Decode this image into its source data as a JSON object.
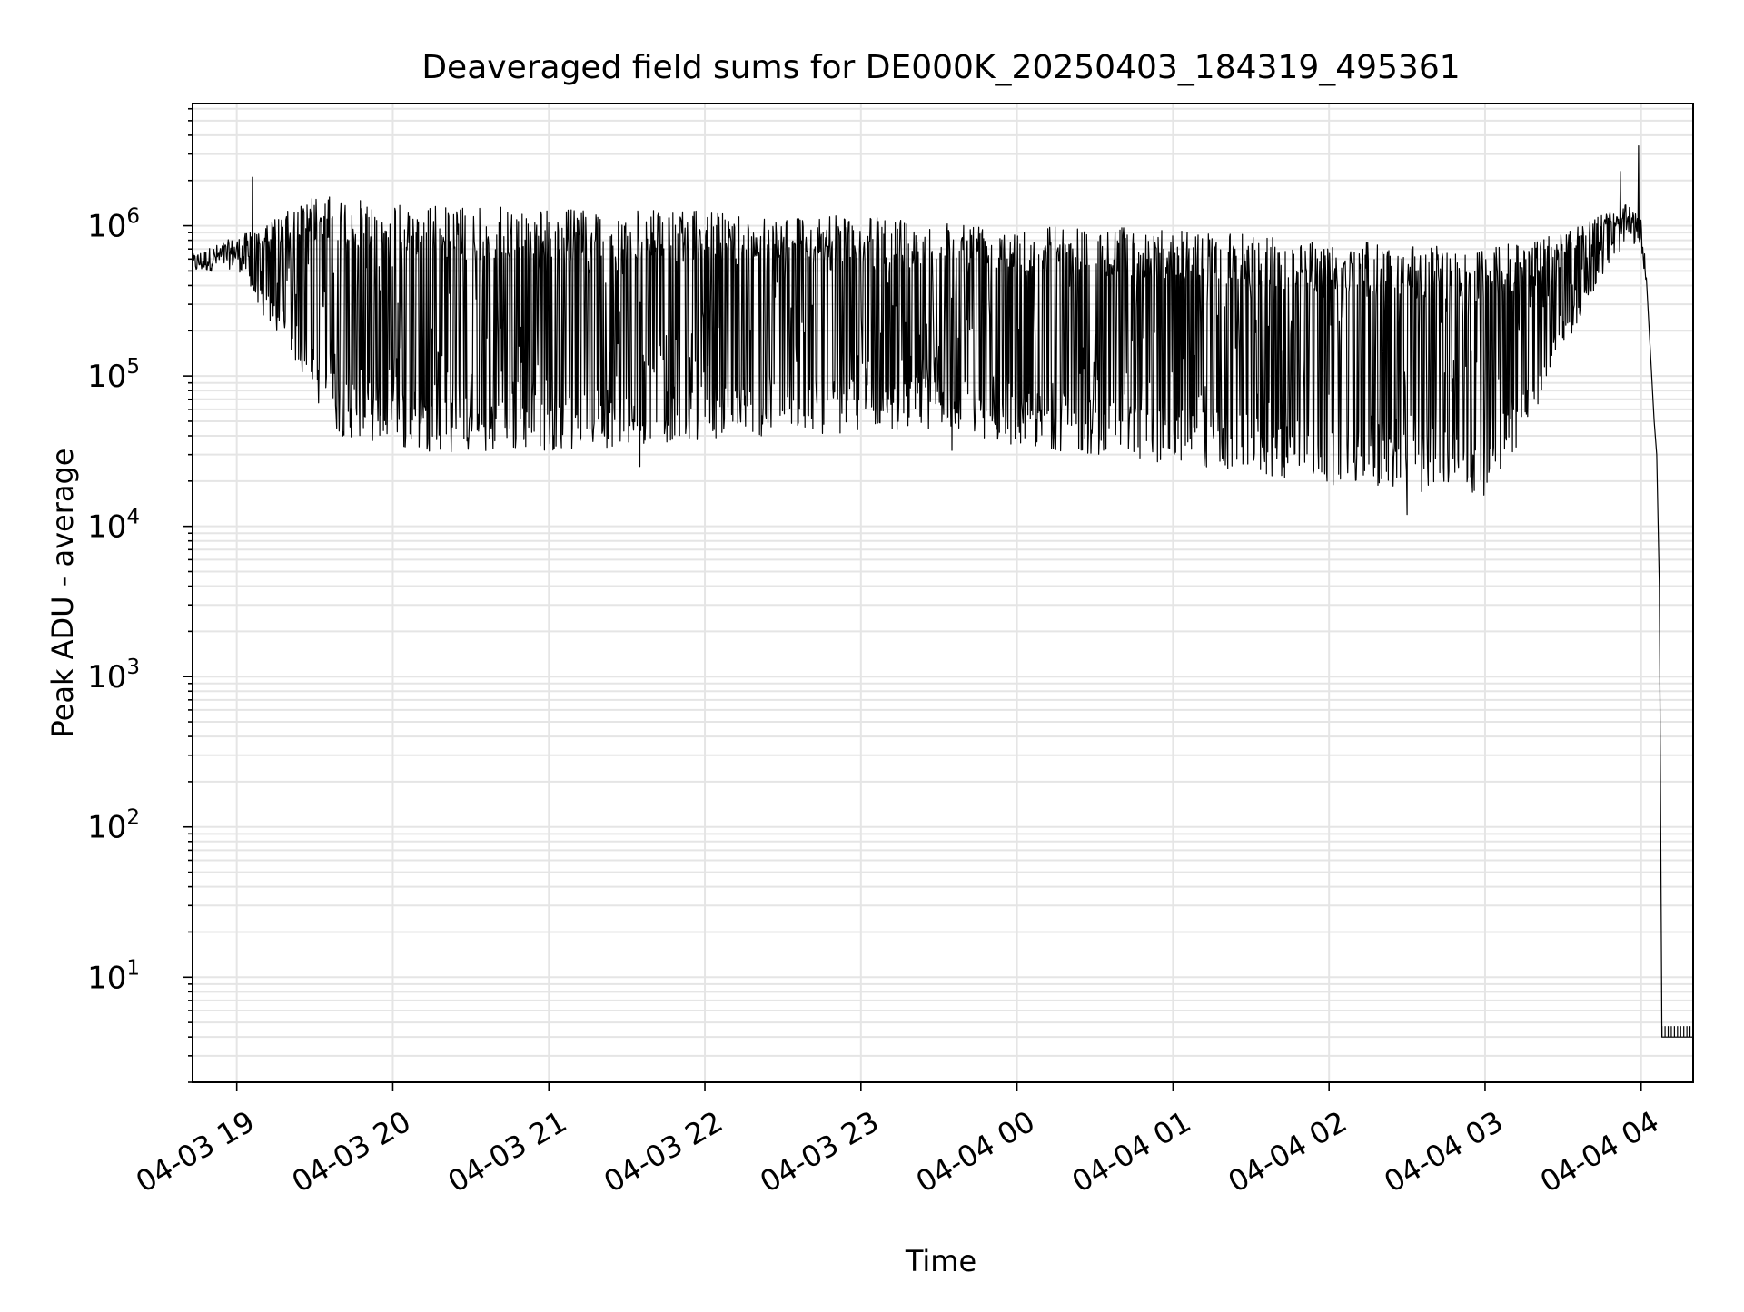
{
  "chart_data": {
    "type": "line",
    "title": "Deaveraged field sums for DE000K_20250403_184319_495361",
    "xlabel": "Time",
    "ylabel": "Peak ADU - average",
    "xscale": "time",
    "yscale": "log",
    "xlim": [
      "2025-04-03 18:43",
      "2025-04-04 04:20"
    ],
    "ylim": [
      2,
      6500000
    ],
    "grid": true,
    "legend": "none",
    "line_color": "#000000",
    "grid_color": "#e5e5e5",
    "x_ticks": [
      {
        "value": "2025-04-03 19:00",
        "label": "04-03 19"
      },
      {
        "value": "2025-04-03 20:00",
        "label": "04-03 20"
      },
      {
        "value": "2025-04-03 21:00",
        "label": "04-03 21"
      },
      {
        "value": "2025-04-03 22:00",
        "label": "04-03 22"
      },
      {
        "value": "2025-04-03 23:00",
        "label": "04-03 23"
      },
      {
        "value": "2025-04-04 00:00",
        "label": "04-04 00"
      },
      {
        "value": "2025-04-04 01:00",
        "label": "04-04 01"
      },
      {
        "value": "2025-04-04 02:00",
        "label": "04-04 02"
      },
      {
        "value": "2025-04-04 03:00",
        "label": "04-04 03"
      },
      {
        "value": "2025-04-04 04:00",
        "label": "04-04 04"
      }
    ],
    "y_ticks": [
      {
        "value": 10,
        "base": "10",
        "exp": "1"
      },
      {
        "value": 100,
        "base": "10",
        "exp": "2"
      },
      {
        "value": 1000,
        "base": "10",
        "exp": "3"
      },
      {
        "value": 10000,
        "base": "10",
        "exp": "4"
      },
      {
        "value": 100000,
        "base": "10",
        "exp": "5"
      },
      {
        "value": 1000000,
        "base": "10",
        "exp": "6"
      }
    ],
    "series": [
      {
        "lower_envelope": [
          [
            "2025-04-03 18:43",
            480000
          ],
          [
            "2025-04-03 19:00",
            520000
          ],
          [
            "2025-04-03 19:05",
            400000
          ],
          [
            "2025-04-03 19:10",
            250000
          ],
          [
            "2025-04-03 19:20",
            150000
          ],
          [
            "2025-04-03 19:30",
            70000
          ],
          [
            "2025-04-03 19:40",
            40000
          ],
          [
            "2025-04-03 20:00",
            33000
          ],
          [
            "2025-04-03 20:30",
            30000
          ],
          [
            "2025-04-03 21:00",
            32000
          ],
          [
            "2025-04-03 21:30",
            34000
          ],
          [
            "2025-04-03 22:00",
            38000
          ],
          [
            "2025-04-03 23:00",
            42000
          ],
          [
            "2025-04-03 23:30",
            45000
          ],
          [
            "2025-04-04 00:00",
            34000
          ],
          [
            "2025-04-04 00:30",
            30000
          ],
          [
            "2025-04-04 01:00",
            26000
          ],
          [
            "2025-04-04 01:30",
            22000
          ],
          [
            "2025-04-04 02:00",
            19000
          ],
          [
            "2025-04-04 02:30",
            17000
          ],
          [
            "2025-04-04 03:00",
            16000
          ],
          [
            "2025-04-04 03:15",
            40000
          ],
          [
            "2025-04-04 03:30",
            150000
          ],
          [
            "2025-04-04 03:45",
            450000
          ],
          [
            "2025-04-04 03:55",
            800000
          ],
          [
            "2025-04-04 04:00",
            700000
          ],
          [
            "2025-04-04 04:02",
            400000
          ]
        ],
        "upper_envelope": [
          [
            "2025-04-03 18:43",
            650000
          ],
          [
            "2025-04-03 19:00",
            850000
          ],
          [
            "2025-04-03 19:10",
            1000000
          ],
          [
            "2025-04-03 19:30",
            1600000
          ],
          [
            "2025-04-03 20:00",
            1400000
          ],
          [
            "2025-04-03 21:00",
            1300000
          ],
          [
            "2025-04-03 22:00",
            1250000
          ],
          [
            "2025-04-03 23:00",
            1150000
          ],
          [
            "2025-04-04 00:00",
            1050000
          ],
          [
            "2025-04-04 01:00",
            950000
          ],
          [
            "2025-04-04 02:00",
            800000
          ],
          [
            "2025-04-04 03:00",
            700000
          ],
          [
            "2025-04-04 03:30",
            900000
          ],
          [
            "2025-04-04 03:55",
            1400000
          ],
          [
            "2025-04-04 04:00",
            1100000
          ],
          [
            "2025-04-04 04:02",
            500000
          ]
        ],
        "tail": [
          [
            "2025-04-04 04:02",
            400000
          ],
          [
            "2025-04-04 04:05",
            50000
          ],
          [
            "2025-04-04 04:06",
            30000
          ],
          [
            "2025-04-04 04:07",
            4000
          ],
          [
            "2025-04-04 04:08",
            4
          ],
          [
            "2025-04-04 04:20",
            4
          ]
        ],
        "spikes": [
          [
            "2025-04-03 19:06",
            2100000
          ],
          [
            "2025-04-03 21:35",
            25000
          ],
          [
            "2025-04-03 23:35",
            32000
          ],
          [
            "2025-04-04 02:30",
            12000
          ],
          [
            "2025-04-04 03:52",
            2300000
          ],
          [
            "2025-04-04 03:59",
            3400000
          ]
        ]
      }
    ]
  }
}
